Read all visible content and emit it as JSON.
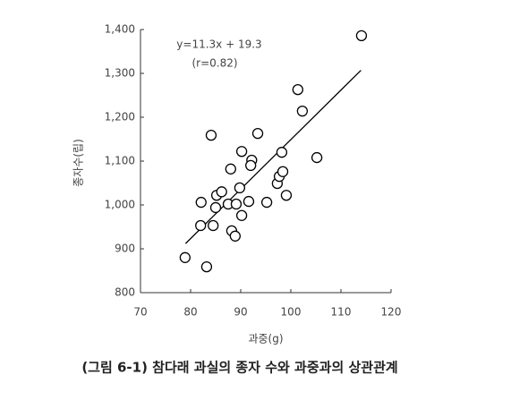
{
  "chart_data": {
    "type": "scatter",
    "caption": "(그림 6-1) 참다래 과실의 종자 수와 과중과의 상관관계",
    "x_label": "과중(g)",
    "y_label": "종자수(립)",
    "annotations": [
      "y=11.3x + 19.3",
      "(r=0.82)"
    ],
    "x": [
      78.9,
      83.2,
      82.0,
      82.1,
      84.5,
      84.1,
      85.0,
      85.2,
      86.2,
      88.0,
      87.5,
      89.1,
      88.2,
      88.9,
      89.8,
      90.2,
      90.2,
      91.6,
      92.2,
      92.0,
      93.4,
      95.2,
      97.3,
      97.7,
      98.4,
      98.2,
      99.1,
      101.4,
      102.3,
      105.2,
      114.1
    ],
    "values": [
      880,
      859,
      953,
      1006,
      953,
      1159,
      994,
      1022,
      1030,
      1082,
      1002,
      1002,
      941,
      929,
      1039,
      976,
      1122,
      1008,
      1102,
      1090,
      1163,
      1006,
      1049,
      1065,
      1076,
      1120,
      1022,
      1263,
      1214,
      1108,
      1386
    ],
    "fit_line": {
      "x": [
        79,
        114
      ],
      "values": [
        912,
        1307
      ]
    },
    "color": "#000000",
    "xlim": [
      70,
      120
    ],
    "xticks": [
      70,
      80,
      90,
      100,
      110,
      120
    ],
    "ylim": [
      800,
      1400
    ],
    "yticks": [
      800,
      900,
      {
        "value": 1000,
        "label": "1,000"
      },
      {
        "value": 1100,
        "label": "1,100"
      },
      {
        "value": 1200,
        "label": "1,200"
      },
      {
        "value": 1300,
        "label": "1,300"
      },
      {
        "value": 1400,
        "label": "1,400"
      }
    ],
    "grid": false
  }
}
